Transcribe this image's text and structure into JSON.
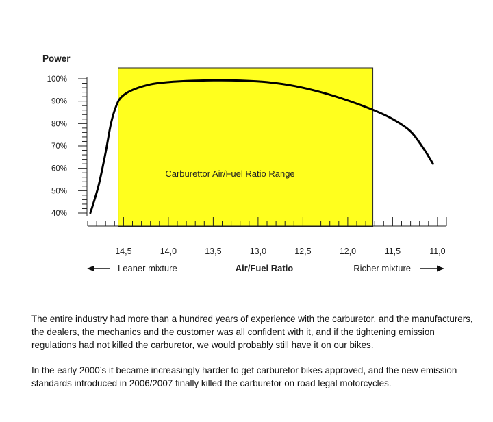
{
  "chart_data": {
    "type": "line",
    "ylabel": "Power",
    "xlabel": "Air/Fuel Ratio",
    "x_reversed": true,
    "xlim": [
      14.9,
      10.9
    ],
    "ylim": [
      40,
      100
    ],
    "x_ticks": [
      "14,5",
      "14,0",
      "13,5",
      "13,0",
      "12,5",
      "12,0",
      "11,5",
      "11,0"
    ],
    "x_tick_values": [
      14.5,
      14.0,
      13.5,
      13.0,
      12.5,
      12.0,
      11.5,
      11.0
    ],
    "y_ticks": [
      "100%",
      "90%",
      "80%",
      "70%",
      "60%",
      "50%",
      "40%"
    ],
    "y_tick_values": [
      100,
      90,
      80,
      70,
      60,
      50,
      40
    ],
    "grid": false,
    "band": {
      "label": "Carburettor Air/Fuel Ratio Range",
      "x_from": 14.56,
      "x_to": 11.72,
      "color": "#ffff1e"
    },
    "left_annotation": "Leaner mixture",
    "right_annotation": "Richer mixture",
    "series": [
      {
        "color": "#000000",
        "x": [
          14.87,
          14.78,
          14.7,
          14.64,
          14.58,
          14.52,
          14.4,
          14.2,
          14.0,
          13.8,
          13.5,
          13.2,
          12.9,
          12.6,
          12.3,
          12.0,
          11.7,
          11.5,
          11.3,
          11.15,
          11.05
        ],
        "y": [
          40,
          52,
          67,
          80,
          88,
          92,
          95,
          97.5,
          98.5,
          99,
          99.3,
          99.2,
          98.5,
          96.8,
          94,
          90.3,
          85.8,
          82,
          76.5,
          68.5,
          62
        ]
      }
    ]
  },
  "text": {
    "paragraph1": "The entire industry had more than a hundred years of experience with the carburetor, and the manufacturers, the dealers, the mechanics and the customer was all confident with it, and if the tightening emission regulations had not killed the carburetor, we would probably still have it on our bikes.",
    "paragraph2": "In the early 2000’s it became increasingly harder to get carburetor bikes approved, and the new emission standards introduced in 2006/2007 finally killed the carburetor on road legal motorcycles."
  }
}
